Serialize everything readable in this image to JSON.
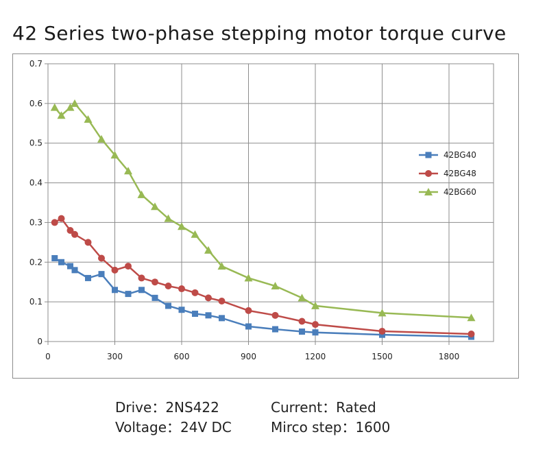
{
  "title": "42 Series two-phase stepping motor torque curve",
  "chart_data": {
    "type": "line",
    "title": "42 Series two-phase stepping motor torque curve",
    "xlim": [
      0,
      2000
    ],
    "ylim": [
      0,
      0.7
    ],
    "xticks": [
      0,
      300,
      600,
      900,
      1200,
      1500,
      1800
    ],
    "yticks": [
      0,
      0.1,
      0.2,
      0.3,
      0.4,
      0.5,
      0.6,
      0.7
    ],
    "ytick_labels": [
      "0",
      "0.1",
      "0.2",
      "0.3",
      "0.4",
      "0.5",
      "0.6",
      "0.7"
    ],
    "grid": true,
    "legend_position": "right",
    "x": [
      30,
      60,
      100,
      120,
      180,
      240,
      300,
      360,
      420,
      480,
      540,
      600,
      660,
      720,
      780,
      900,
      1020,
      1140,
      1200,
      1500,
      1900
    ],
    "series": [
      {
        "name": "42BG40",
        "color": "#4a7ebb",
        "marker": "square",
        "values": [
          0.21,
          0.2,
          0.19,
          0.18,
          0.16,
          0.17,
          0.13,
          0.12,
          0.13,
          0.11,
          0.09,
          0.08,
          0.07,
          0.066,
          0.059,
          0.038,
          0.031,
          0.025,
          0.023,
          0.017,
          0.012
        ]
      },
      {
        "name": "42BG48",
        "color": "#be4b48",
        "marker": "circle",
        "values": [
          0.3,
          0.31,
          0.28,
          0.27,
          0.25,
          0.21,
          0.18,
          0.19,
          0.16,
          0.15,
          0.14,
          0.133,
          0.123,
          0.11,
          0.102,
          0.078,
          0.066,
          0.051,
          0.043,
          0.026,
          0.019
        ]
      },
      {
        "name": "42BG60",
        "color": "#98b954",
        "marker": "triangle",
        "values": [
          0.59,
          0.57,
          0.59,
          0.6,
          0.56,
          0.51,
          0.47,
          0.43,
          0.37,
          0.34,
          0.31,
          0.29,
          0.27,
          0.23,
          0.19,
          0.16,
          0.14,
          0.11,
          0.09,
          0.072,
          0.06
        ]
      }
    ]
  },
  "specs": {
    "drive": "Drive：2NS422",
    "current": "Current：Rated",
    "voltage": "Voltage：24V DC",
    "microstep": "Mirco step：1600"
  }
}
